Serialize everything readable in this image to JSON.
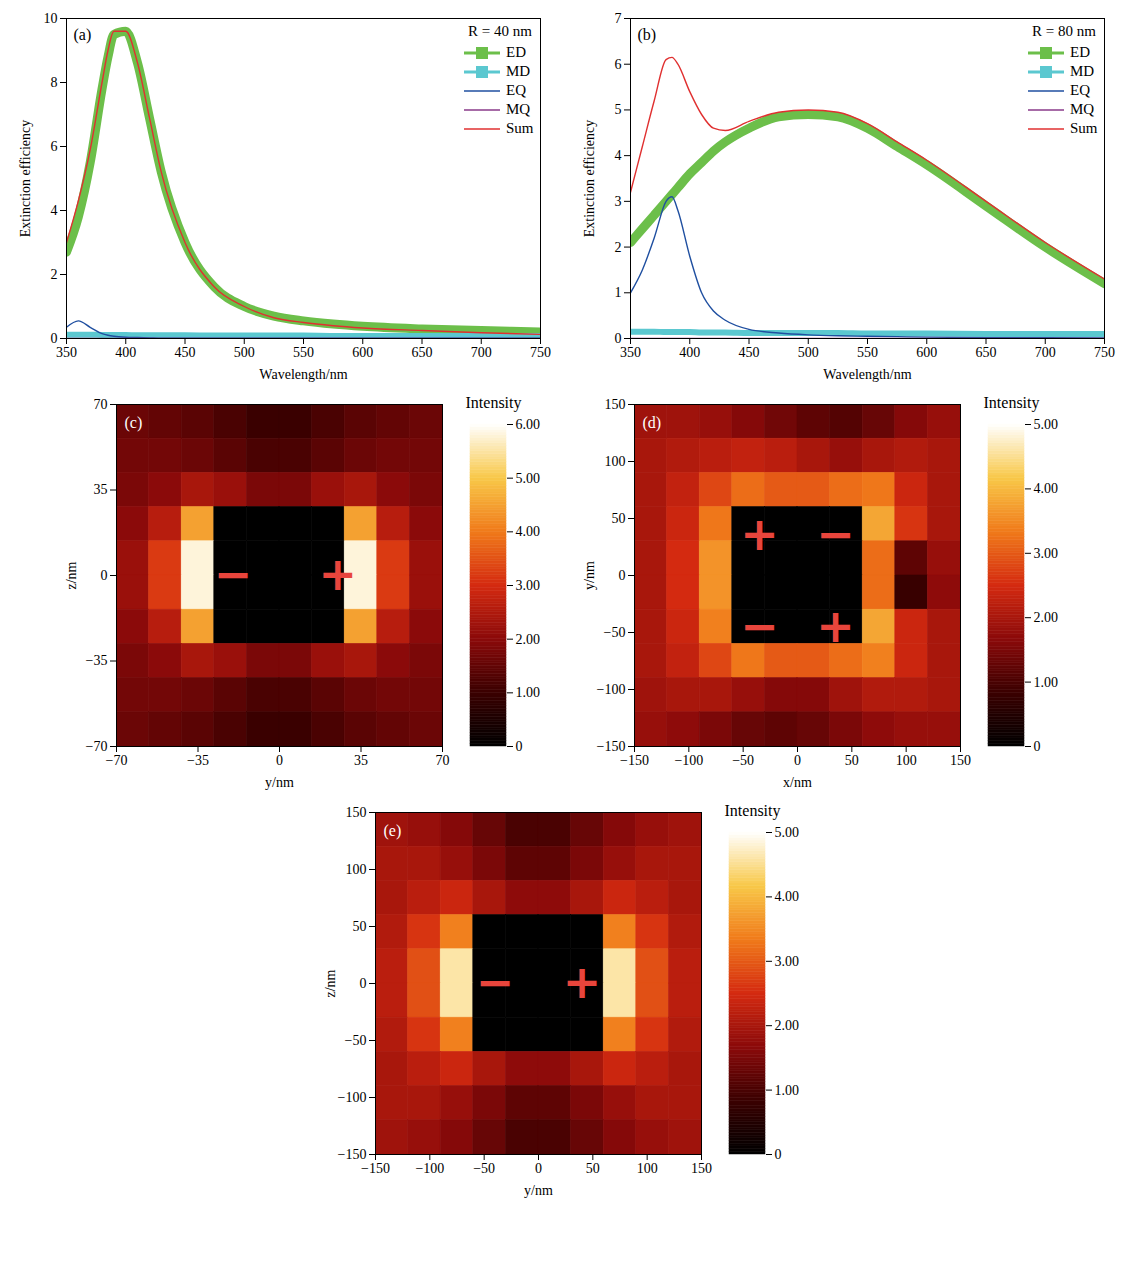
{
  "chart_data": [
    {
      "type": "line",
      "label": "(a)",
      "annotation": "R = 40 nm",
      "xlabel": "Wavelength/nm",
      "ylabel": "Extinction efficiency",
      "xlim": [
        350,
        750
      ],
      "ylim": [
        0,
        10
      ],
      "xticks": [
        350,
        400,
        450,
        500,
        550,
        600,
        650,
        700,
        750
      ],
      "yticks": [
        0,
        2,
        4,
        6,
        8,
        10
      ],
      "legend": "top-right",
      "x": [
        350,
        360,
        370,
        380,
        385,
        390,
        400,
        410,
        420,
        430,
        450,
        475,
        500,
        525,
        550,
        575,
        600,
        650,
        700,
        750
      ],
      "series": [
        {
          "name": "ED",
          "color": "#6cbf4a",
          "marker": "square",
          "values": [
            2.7,
            3.8,
            5.5,
            7.8,
            8.8,
            9.5,
            9.6,
            8.6,
            6.9,
            5.2,
            3.0,
            1.6,
            1.0,
            0.7,
            0.55,
            0.45,
            0.38,
            0.3,
            0.25,
            0.2
          ]
        },
        {
          "name": "MD",
          "color": "#5bc8d0",
          "marker": "square",
          "values": [
            0.12,
            0.12,
            0.12,
            0.11,
            0.11,
            0.11,
            0.11,
            0.1,
            0.1,
            0.1,
            0.1,
            0.09,
            0.09,
            0.09,
            0.09,
            0.08,
            0.08,
            0.08,
            0.08,
            0.08
          ]
        },
        {
          "name": "EQ",
          "color": "#1f4fa0",
          "values": [
            0.35,
            0.55,
            0.35,
            0.15,
            0.1,
            0.07,
            0.04,
            0.03,
            0.02,
            0.01,
            0.01,
            0.01,
            0.01,
            0.01,
            0.01,
            0.01,
            0.01,
            0.01,
            0.01,
            0.01
          ]
        },
        {
          "name": "MQ",
          "color": "#8a3a8a",
          "values": [
            0,
            0,
            0,
            0,
            0,
            0,
            0,
            0,
            0,
            0,
            0,
            0,
            0,
            0,
            0,
            0,
            0,
            0,
            0,
            0
          ]
        },
        {
          "name": "Sum",
          "color": "#e03030",
          "values": [
            3.0,
            4.3,
            5.9,
            8.0,
            9.0,
            9.6,
            9.6,
            8.6,
            6.9,
            5.2,
            3.0,
            1.6,
            1.0,
            0.65,
            0.5,
            0.4,
            0.33,
            0.25,
            0.18,
            0.13
          ]
        }
      ]
    },
    {
      "type": "line",
      "label": "(b)",
      "annotation": "R = 80 nm",
      "xlabel": "Wavelength/nm",
      "ylabel": "Extinction efficiency",
      "xlim": [
        350,
        750
      ],
      "ylim": [
        0,
        7
      ],
      "xticks": [
        350,
        400,
        450,
        500,
        550,
        600,
        650,
        700,
        750
      ],
      "yticks": [
        0,
        1,
        2,
        3,
        4,
        5,
        6,
        7
      ],
      "legend": "top-right",
      "x": [
        350,
        360,
        370,
        380,
        385,
        390,
        400,
        410,
        420,
        430,
        450,
        475,
        500,
        525,
        550,
        575,
        600,
        650,
        700,
        750
      ],
      "series": [
        {
          "name": "ED",
          "color": "#6cbf4a",
          "marker": "square",
          "values": [
            2.1,
            2.4,
            2.7,
            3.0,
            3.15,
            3.3,
            3.6,
            3.85,
            4.1,
            4.3,
            4.6,
            4.85,
            4.9,
            4.85,
            4.6,
            4.2,
            3.8,
            2.9,
            2.0,
            1.2
          ]
        },
        {
          "name": "MD",
          "color": "#5bc8d0",
          "marker": "square",
          "values": [
            0.15,
            0.15,
            0.15,
            0.14,
            0.14,
            0.14,
            0.14,
            0.13,
            0.13,
            0.13,
            0.12,
            0.12,
            0.12,
            0.12,
            0.11,
            0.11,
            0.11,
            0.1,
            0.1,
            0.1
          ]
        },
        {
          "name": "EQ",
          "color": "#1f4fa0",
          "values": [
            1.0,
            1.5,
            2.2,
            3.0,
            3.1,
            2.8,
            1.8,
            1.0,
            0.6,
            0.4,
            0.2,
            0.12,
            0.08,
            0.06,
            0.05,
            0.04,
            0.03,
            0.02,
            0.02,
            0.01
          ]
        },
        {
          "name": "MQ",
          "color": "#8a3a8a",
          "values": [
            0,
            0,
            0,
            0,
            0,
            0,
            0,
            0,
            0,
            0,
            0,
            0,
            0,
            0,
            0,
            0,
            0,
            0,
            0,
            0
          ]
        },
        {
          "name": "Sum",
          "color": "#e03030",
          "values": [
            3.2,
            4.2,
            5.2,
            6.1,
            6.15,
            6.0,
            5.4,
            4.9,
            4.6,
            4.55,
            4.75,
            4.95,
            5.0,
            4.95,
            4.7,
            4.3,
            3.9,
            3.0,
            2.1,
            1.3
          ]
        }
      ]
    },
    {
      "type": "heatmap",
      "label": "(c)",
      "xlabel": "y/nm",
      "ylabel": "z/nm",
      "xlim": [
        -70,
        70
      ],
      "ylim": [
        -70,
        70
      ],
      "xticks": [
        -70,
        -35,
        0,
        35,
        70
      ],
      "yticks": [
        -70,
        -35,
        0,
        35,
        70
      ],
      "x": [
        -63,
        -49,
        -35,
        -21,
        -7,
        7,
        21,
        35,
        49,
        63
      ],
      "y": [
        63,
        49,
        35,
        21,
        7,
        -7,
        -21,
        -35,
        -49,
        -63
      ],
      "cells": [
        [
          1.6,
          1.5,
          1.4,
          1.2,
          1.0,
          1.0,
          1.2,
          1.4,
          1.5,
          1.6
        ],
        [
          1.7,
          1.7,
          1.6,
          1.4,
          1.2,
          1.2,
          1.4,
          1.6,
          1.7,
          1.7
        ],
        [
          1.8,
          2.0,
          2.4,
          2.2,
          1.8,
          1.8,
          2.2,
          2.4,
          2.0,
          1.8
        ],
        [
          2.0,
          2.6,
          4.5,
          0,
          0,
          0,
          0,
          4.5,
          2.6,
          2.0
        ],
        [
          2.2,
          3.2,
          5.8,
          0,
          0,
          0,
          0,
          5.8,
          3.2,
          2.2
        ],
        [
          2.2,
          3.2,
          5.8,
          0,
          0,
          0,
          0,
          5.8,
          3.2,
          2.2
        ],
        [
          2.0,
          2.6,
          4.5,
          0,
          0,
          0,
          0,
          4.5,
          2.6,
          2.0
        ],
        [
          1.8,
          2.0,
          2.4,
          2.2,
          1.8,
          1.8,
          2.2,
          2.4,
          2.0,
          1.8
        ],
        [
          1.7,
          1.7,
          1.6,
          1.4,
          1.2,
          1.2,
          1.4,
          1.6,
          1.7,
          1.7
        ],
        [
          1.6,
          1.5,
          1.4,
          1.2,
          1.0,
          1.0,
          1.2,
          1.4,
          1.5,
          1.6
        ]
      ],
      "colorbar": {
        "title": "Intensity",
        "lim": [
          0,
          6
        ],
        "ticks": [
          0,
          {
            "value": 1,
            "label": "1.00"
          },
          {
            "value": 2,
            "label": "2.00"
          },
          {
            "value": 3,
            "label": "3.00"
          },
          {
            "value": 4,
            "label": "4.00"
          },
          {
            "value": 5,
            "label": "5.00"
          },
          {
            "value": 6,
            "label": "6.00"
          }
        ]
      },
      "annotations": [
        {
          "text": "−",
          "x": -20,
          "y": 0
        },
        {
          "text": "+",
          "x": 25,
          "y": 0
        }
      ]
    },
    {
      "type": "heatmap",
      "label": "(d)",
      "xlabel": "x/nm",
      "ylabel": "y/nm",
      "xlim": [
        -150,
        150
      ],
      "ylim": [
        -150,
        150
      ],
      "xticks": [
        -150,
        -100,
        -50,
        0,
        50,
        100,
        150
      ],
      "yticks": [
        -150,
        -100,
        -50,
        0,
        50,
        100,
        150
      ],
      "x": [
        -135,
        -105,
        -75,
        -45,
        -15,
        15,
        45,
        75,
        105,
        135
      ],
      "y": [
        135,
        105,
        75,
        45,
        15,
        -15,
        -45,
        -75,
        -105,
        -135
      ],
      "cells": [
        [
          1.9,
          1.9,
          1.8,
          1.6,
          1.4,
          1.2,
          1.1,
          1.3,
          1.6,
          1.8
        ],
        [
          2.0,
          2.1,
          2.2,
          2.3,
          2.2,
          2.0,
          1.8,
          2.0,
          2.1,
          2.0
        ],
        [
          2.0,
          2.3,
          2.8,
          3.2,
          3.0,
          3.0,
          3.2,
          3.3,
          2.4,
          2.0
        ],
        [
          2.0,
          2.4,
          3.3,
          0,
          0,
          0,
          0,
          3.8,
          2.6,
          2.0
        ],
        [
          2.0,
          2.5,
          3.6,
          0,
          0,
          0,
          0,
          3.2,
          1.2,
          1.8
        ],
        [
          2.0,
          2.5,
          3.6,
          0,
          0,
          0,
          0,
          3.2,
          0.8,
          1.7
        ],
        [
          2.0,
          2.4,
          3.4,
          0,
          0,
          0,
          0,
          3.8,
          2.4,
          2.0
        ],
        [
          2.0,
          2.3,
          2.8,
          3.3,
          3.0,
          3.0,
          3.2,
          3.4,
          2.4,
          2.0
        ],
        [
          1.9,
          2.0,
          2.0,
          1.8,
          1.6,
          1.6,
          1.9,
          2.1,
          2.1,
          2.0
        ],
        [
          1.8,
          1.7,
          1.5,
          1.3,
          1.2,
          1.3,
          1.5,
          1.7,
          1.8,
          1.8
        ]
      ],
      "colorbar": {
        "title": "Intensity",
        "lim": [
          0,
          5
        ],
        "ticks": [
          0,
          {
            "value": 1,
            "label": "1.00"
          },
          {
            "value": 2,
            "label": "2.00"
          },
          {
            "value": 3,
            "label": "3.00"
          },
          {
            "value": 4,
            "label": "4.00"
          },
          {
            "value": 5,
            "label": "5.00"
          }
        ]
      },
      "annotations": [
        {
          "text": "+",
          "x": -35,
          "y": 35
        },
        {
          "text": "−",
          "x": 35,
          "y": 35
        },
        {
          "text": "−",
          "x": -35,
          "y": -45
        },
        {
          "text": "+",
          "x": 35,
          "y": -45
        }
      ]
    },
    {
      "type": "heatmap",
      "label": "(e)",
      "xlabel": "y/nm",
      "ylabel": "z/nm",
      "xlim": [
        -150,
        150
      ],
      "ylim": [
        -150,
        150
      ],
      "xticks": [
        -150,
        -100,
        -50,
        0,
        50,
        100,
        150
      ],
      "yticks": [
        -150,
        -100,
        -50,
        0,
        50,
        100,
        150
      ],
      "x": [
        -135,
        -105,
        -75,
        -45,
        -15,
        15,
        45,
        75,
        105,
        135
      ],
      "y": [
        135,
        105,
        75,
        45,
        15,
        -15,
        -45,
        -75,
        -105,
        -135
      ],
      "cells": [
        [
          1.9,
          1.8,
          1.6,
          1.3,
          1.0,
          1.0,
          1.3,
          1.6,
          1.8,
          1.9
        ],
        [
          2.0,
          2.0,
          1.8,
          1.5,
          1.2,
          1.2,
          1.5,
          1.8,
          2.0,
          2.0
        ],
        [
          2.0,
          2.2,
          2.4,
          2.0,
          1.7,
          1.7,
          2.0,
          2.4,
          2.2,
          2.0
        ],
        [
          2.1,
          2.6,
          3.4,
          0,
          0,
          0,
          0,
          3.4,
          2.6,
          2.1
        ],
        [
          2.2,
          2.9,
          4.6,
          0,
          0,
          0,
          0,
          4.6,
          2.9,
          2.2
        ],
        [
          2.2,
          2.9,
          4.6,
          0,
          0,
          0,
          0,
          4.6,
          2.9,
          2.2
        ],
        [
          2.1,
          2.6,
          3.4,
          0,
          0,
          0,
          0,
          3.4,
          2.6,
          2.1
        ],
        [
          2.0,
          2.2,
          2.4,
          2.0,
          1.7,
          1.7,
          2.0,
          2.4,
          2.2,
          2.0
        ],
        [
          2.0,
          2.0,
          1.8,
          1.5,
          1.2,
          1.2,
          1.5,
          1.8,
          2.0,
          2.0
        ],
        [
          1.9,
          1.8,
          1.6,
          1.3,
          1.0,
          1.0,
          1.3,
          1.6,
          1.8,
          1.9
        ]
      ],
      "colorbar": {
        "title": "Intensity",
        "lim": [
          0,
          5
        ],
        "ticks": [
          0,
          {
            "value": 1,
            "label": "1.00"
          },
          {
            "value": 2,
            "label": "2.00"
          },
          {
            "value": 3,
            "label": "3.00"
          },
          {
            "value": 4,
            "label": "4.00"
          },
          {
            "value": 5,
            "label": "5.00"
          }
        ]
      },
      "annotations": [
        {
          "text": "−",
          "x": -40,
          "y": 0
        },
        {
          "text": "+",
          "x": 40,
          "y": 0
        }
      ]
    }
  ]
}
